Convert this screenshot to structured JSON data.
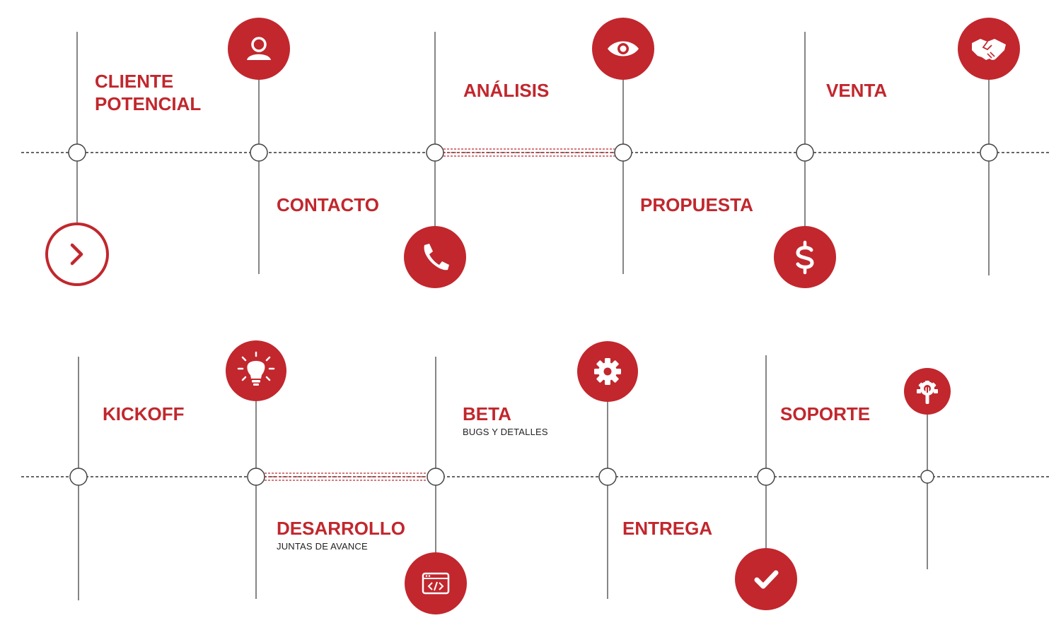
{
  "colors": {
    "accent": "#C1272D",
    "line": "#333333",
    "white": "#ffffff"
  },
  "stages": [
    {
      "id": "cliente-potencial",
      "title": "CLIENTE\nPOTENCIAL",
      "subtitle": "",
      "icon": "chevron-right-icon"
    },
    {
      "id": "contacto",
      "title": "CONTACTO",
      "subtitle": "",
      "icon": "user-icon"
    },
    {
      "id": "analisis",
      "title": "ANÁLISIS",
      "subtitle": "",
      "icon": "phone-icon"
    },
    {
      "id": "propuesta",
      "title": "PROPUESTA",
      "subtitle": "",
      "icon": "eye-icon"
    },
    {
      "id": "venta",
      "title": "VENTA",
      "subtitle": "",
      "icon": "dollar-icon"
    },
    {
      "id": "handshake",
      "title": "",
      "subtitle": "",
      "icon": "handshake-icon"
    },
    {
      "id": "kickoff",
      "title": "KICKOFF",
      "subtitle": "",
      "icon": ""
    },
    {
      "id": "desarrollo",
      "title": "DESARROLLO",
      "subtitle": "JUNTAS DE AVANCE",
      "icon": "lightbulb-icon"
    },
    {
      "id": "beta",
      "title": "BETA",
      "subtitle": "BUGS Y DETALLES",
      "icon": "code-window-icon"
    },
    {
      "id": "entrega",
      "title": "ENTREGA",
      "subtitle": "",
      "icon": "gear-icon"
    },
    {
      "id": "soporte",
      "title": "SOPORTE",
      "subtitle": "",
      "icon": "checkmark-icon"
    },
    {
      "id": "support-end",
      "title": "",
      "subtitle": "",
      "icon": "wrench-gear-icon"
    }
  ]
}
